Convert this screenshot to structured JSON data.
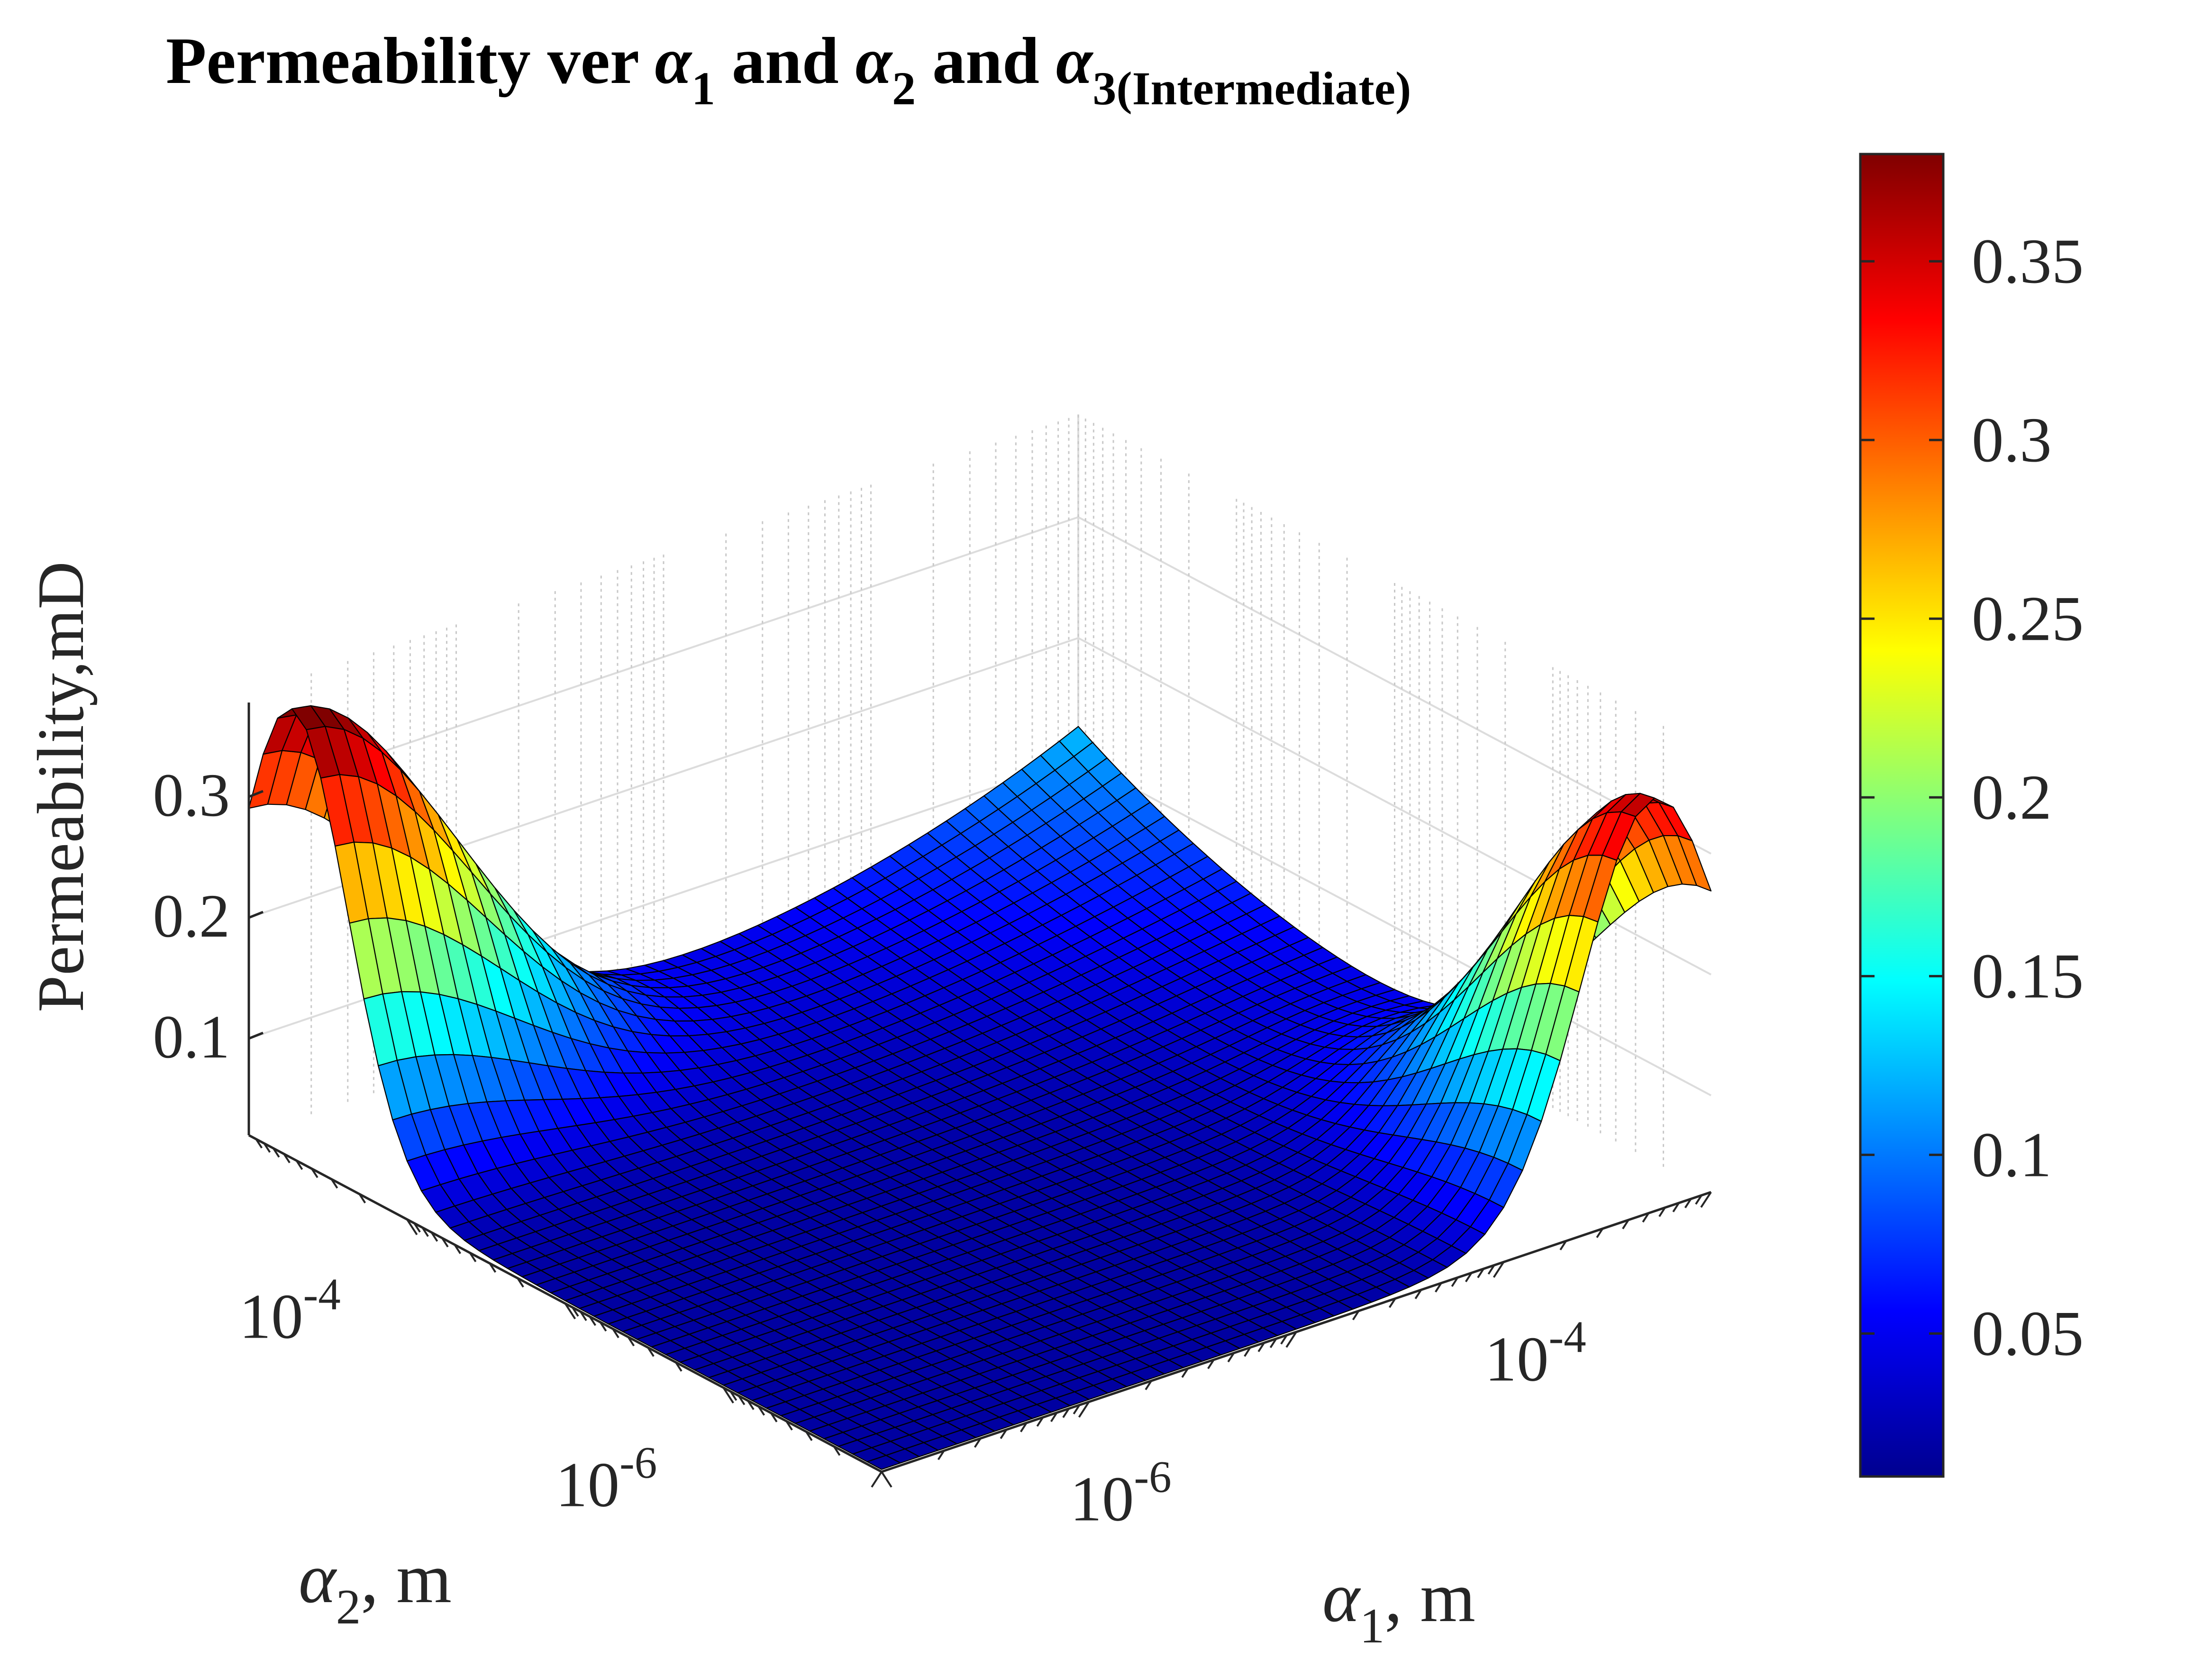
{
  "chart_data": {
    "type": "surface",
    "title": {
      "main": "Permeability ver ",
      "sym": "α",
      "sub1": "1",
      "and1": " and ",
      "sub2": "2",
      "and2": " and ",
      "sub3": "3(Intermediate)"
    },
    "zlabel": "Permeability,mD",
    "xlabel": {
      "sym": "α",
      "sub": "1",
      "unit": ", m"
    },
    "ylabel": {
      "sym": "α",
      "sub": "2",
      "unit": ", m"
    },
    "x_scale": "log",
    "y_scale": "log",
    "x_range": [
      1e-07,
      0.001
    ],
    "y_range": [
      1e-07,
      0.001
    ],
    "x_ticks": [
      {
        "base": "10",
        "exp": "-6"
      },
      {
        "base": "10",
        "exp": "-4"
      }
    ],
    "y_ticks": [
      {
        "base": "10",
        "exp": "-6"
      },
      {
        "base": "10",
        "exp": "-4"
      }
    ],
    "z_ticks": [
      "0.1",
      "0.2",
      "0.3"
    ],
    "zlim": [
      0.02,
      0.38
    ],
    "grid": true,
    "colormap": "jet",
    "colorbar": {
      "location": "right",
      "range": [
        0.01,
        0.38
      ],
      "ticks": [
        "0.05",
        "0.1",
        "0.15",
        "0.2",
        "0.25",
        "0.3",
        "0.35"
      ]
    },
    "surface_features": {
      "peak_at_max_alpha2_min_alpha1": 0.37,
      "peak_at_max_alpha1_min_alpha2": 0.34,
      "value_at_max_alpha1_max_alpha2": 0.19,
      "value_at_min_alpha1_min_alpha2": 0.02,
      "value_at_max_alpha2_edge_start": 0.03,
      "value_at_max_alpha1_edge_end": 0.03
    }
  }
}
